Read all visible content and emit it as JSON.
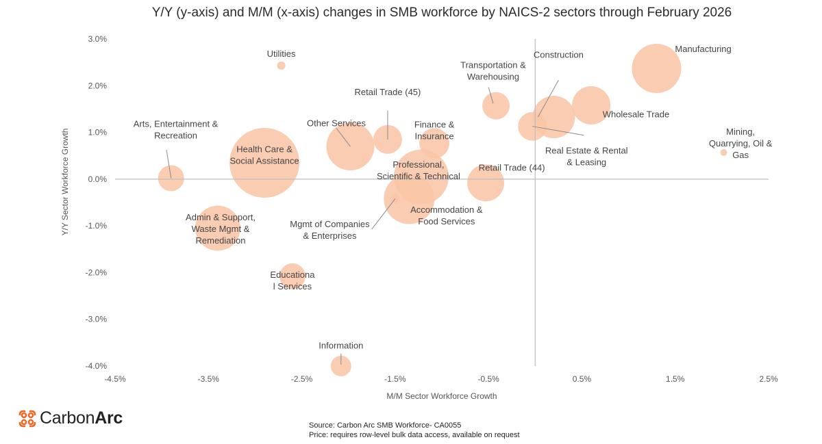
{
  "chart_data": {
    "type": "scatter",
    "title": "Y/Y (y-axis) and M/M (x-axis) changes in SMB workforce by NAICS-2 sectors through February 2026",
    "xlabel": "M/M Sector Workforce Growth",
    "ylabel": "Y/Y Sector Workforce Growth",
    "xlim": [
      -4.5,
      2.5
    ],
    "ylim": [
      -4.0,
      3.0
    ],
    "xticks": [
      "-4.5%",
      "-3.5%",
      "-2.5%",
      "-1.5%",
      "-0.5%",
      "0.5%",
      "1.5%",
      "2.5%"
    ],
    "yticks": [
      "3.0%",
      "2.0%",
      "1.0%",
      "0.0%",
      "-1.0%",
      "-2.0%",
      "-3.0%",
      "-4.0%"
    ],
    "grid": false,
    "bubble_color": "#f9c4a6",
    "points": [
      {
        "label": "Manufacturing",
        "x": 1.3,
        "y": 2.37,
        "size": 36
      },
      {
        "label": "Construction",
        "x": 0.2,
        "y": 1.33,
        "size": 31
      },
      {
        "label": "Wholesale Trade",
        "x": 0.6,
        "y": 1.58,
        "size": 28
      },
      {
        "label": "Real Estate & Rental & Leasing",
        "x": -0.03,
        "y": 1.13,
        "size": 21
      },
      {
        "label": "Transportation & Warehousing",
        "x": -0.42,
        "y": 1.57,
        "size": 20
      },
      {
        "label": "Mining, Quarrying, Oil & Gas",
        "x": 2.02,
        "y": 0.57,
        "size": 5
      },
      {
        "label": "Retail Trade (44)",
        "x": -0.53,
        "y": -0.08,
        "size": 27
      },
      {
        "label": "Finance & Insurance",
        "x": -1.08,
        "y": 0.77,
        "size": 22
      },
      {
        "label": "Retail Trade (45)",
        "x": -1.58,
        "y": 0.85,
        "size": 21
      },
      {
        "label": "Other Services",
        "x": -1.98,
        "y": 0.7,
        "size": 35
      },
      {
        "label": "Professional, Scientific & Technical",
        "x": -1.22,
        "y": 0.05,
        "size": 40
      },
      {
        "label": "Accommodation & Food Services",
        "x": -1.35,
        "y": -0.42,
        "size": 37
      },
      {
        "label": "Mgmt of Companies & Enterprises",
        "x": -1.5,
        "y": -0.42,
        "size": 7
      },
      {
        "label": "Health Care & Social Assistance",
        "x": -2.9,
        "y": 0.35,
        "size": 51
      },
      {
        "label": "Utilities",
        "x": -2.72,
        "y": 2.43,
        "size": 6
      },
      {
        "label": "Arts, Entertainment & Recreation",
        "x": -3.9,
        "y": 0.02,
        "size": 19
      },
      {
        "label": "Admin & Support, Waste Mgmt & Remediation",
        "x": -3.4,
        "y": -1.05,
        "size": 33
      },
      {
        "label": "Educational Services",
        "x": -2.6,
        "y": -2.08,
        "size": 19
      },
      {
        "label": "Information",
        "x": -2.08,
        "y": -4.0,
        "size": 15
      }
    ],
    "annotations": [
      {
        "lines": [
          "Manufacturing"
        ],
        "x": 1.8,
        "y": 2.72
      },
      {
        "lines": [
          "Construction"
        ],
        "x": 0.25,
        "y": 2.6
      },
      {
        "lines": [
          "Wholesale Trade"
        ],
        "x": 1.08,
        "y": 1.32
      },
      {
        "lines": [
          "Real Estate & Rental",
          "& Leasing"
        ],
        "x": 0.55,
        "y": 0.55
      },
      {
        "lines": [
          "Transportation &",
          "Warehousing"
        ],
        "x": -0.45,
        "y": 2.38
      },
      {
        "lines": [
          "Mining,",
          "Quarrying, Oil &",
          "Gas"
        ],
        "x": 2.2,
        "y": 0.95
      },
      {
        "lines": [
          "Retail Trade (44)"
        ],
        "x": -0.25,
        "y": 0.18
      },
      {
        "lines": [
          "Finance &",
          "Insurance"
        ],
        "x": -1.08,
        "y": 1.1
      },
      {
        "lines": [
          "Retail Trade (45)"
        ],
        "x": -1.58,
        "y": 1.8
      },
      {
        "lines": [
          "Other Services"
        ],
        "x": -2.13,
        "y": 1.13
      },
      {
        "lines": [
          "Health Care &",
          "Social Assistance"
        ],
        "x": -2.9,
        "y": 0.58
      },
      {
        "lines": [
          "Professional,",
          "Scientific & Technical"
        ],
        "x": -1.25,
        "y": 0.25
      },
      {
        "lines": [
          "Accommodation &",
          "Food Services"
        ],
        "x": -0.95,
        "y": -0.72
      },
      {
        "lines": [
          "Mgmt of Companies",
          "& Enterprises"
        ],
        "x": -2.2,
        "y": -1.03
      },
      {
        "lines": [
          "Utilities"
        ],
        "x": -2.72,
        "y": 2.62
      },
      {
        "lines": [
          "Arts, Entertainment &",
          "Recreation"
        ],
        "x": -3.85,
        "y": 1.12
      },
      {
        "lines": [
          "Admin & Support,",
          "Waste Mgmt &",
          "Remediation"
        ],
        "x": -3.37,
        "y": -0.88
      },
      {
        "lines": [
          "Educationa",
          "l Services"
        ],
        "x": -2.6,
        "y": -2.11
      },
      {
        "lines": [
          "Information"
        ],
        "x": -2.08,
        "y": -3.63
      }
    ],
    "leader_lines": [
      {
        "from": [
          0.25,
          2.12
        ],
        "to": [
          0.03,
          1.33
        ]
      },
      {
        "from": [
          -0.5,
          1.97
        ],
        "to": [
          -0.45,
          1.62
        ]
      },
      {
        "from": [
          0.52,
          0.94
        ],
        "to": [
          -0.03,
          1.13
        ]
      },
      {
        "from": [
          -1.58,
          1.47
        ],
        "to": [
          -1.58,
          0.85
        ]
      },
      {
        "from": [
          -2.13,
          1.09
        ],
        "to": [
          -1.98,
          0.7
        ]
      },
      {
        "from": [
          -3.95,
          0.63
        ],
        "to": [
          -3.9,
          0.02
        ]
      },
      {
        "from": [
          -1.75,
          -1.07
        ],
        "to": [
          -1.5,
          -0.42
        ]
      },
      {
        "from": [
          -2.08,
          -3.73
        ],
        "to": [
          -2.08,
          -3.97
        ]
      }
    ]
  },
  "logo": {
    "part1": "Carbon",
    "part2": "Arc"
  },
  "source": {
    "line1": "Source: Carbon Arc SMB Workforce- CA0055",
    "line2": "Price: requires row-level bulk data access, available on request"
  }
}
